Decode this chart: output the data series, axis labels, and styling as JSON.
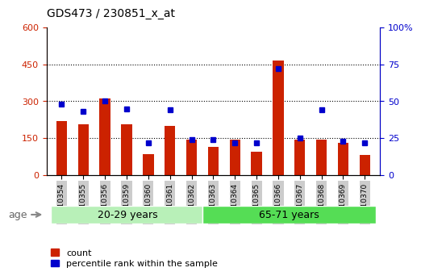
{
  "title": "GDS473 / 230851_x_at",
  "samples": [
    "GSM10354",
    "GSM10355",
    "GSM10356",
    "GSM10359",
    "GSM10360",
    "GSM10361",
    "GSM10362",
    "GSM10363",
    "GSM10364",
    "GSM10365",
    "GSM10366",
    "GSM10367",
    "GSM10368",
    "GSM10369",
    "GSM10370"
  ],
  "counts": [
    220,
    205,
    310,
    205,
    85,
    200,
    145,
    115,
    145,
    95,
    465,
    145,
    145,
    130,
    80
  ],
  "percentile_ranks": [
    48,
    43,
    50,
    45,
    22,
    44,
    24,
    24,
    22,
    22,
    72,
    25,
    44,
    23,
    22
  ],
  "group1_label": "20-29 years",
  "group2_label": "65-71 years",
  "group1_count": 7,
  "group2_count": 8,
  "left_ylim": [
    0,
    600
  ],
  "right_ylim": [
    0,
    100
  ],
  "left_yticks": [
    0,
    150,
    300,
    450,
    600
  ],
  "right_yticks": [
    0,
    25,
    50,
    75,
    100
  ],
  "right_yticklabels": [
    "0",
    "25",
    "50",
    "75",
    "100%"
  ],
  "bar_color": "#cc2200",
  "dot_color": "#0000cc",
  "group1_bg": "#b8f0b8",
  "group2_bg": "#55dd55",
  "tick_bg": "#cccccc",
  "legend_count_label": "count",
  "legend_pct_label": "percentile rank within the sample",
  "grid_yticks": [
    150,
    300,
    450
  ],
  "age_label": "age"
}
